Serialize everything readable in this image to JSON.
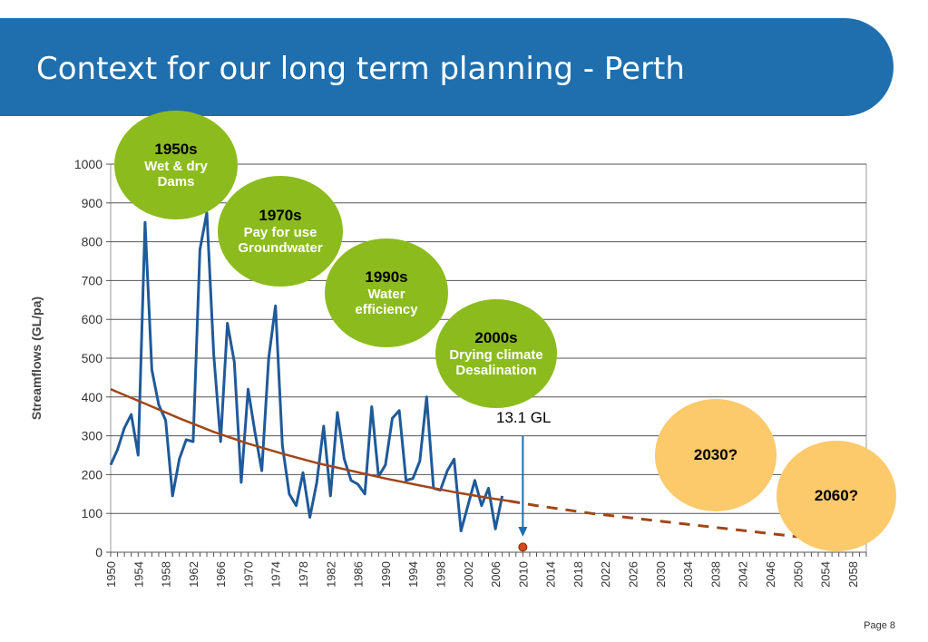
{
  "slide": {
    "title": "Context for our long term planning - Perth",
    "page_label": "Page 8"
  },
  "bubbles": [
    {
      "era": "1950s",
      "line1": "Wet & dry",
      "line2": "Dams"
    },
    {
      "era": "1970s",
      "line1": "Pay for use",
      "line2": "Groundwater"
    },
    {
      "era": "1990s",
      "line1": "Water",
      "line2": "efficiency"
    },
    {
      "era": "2000s",
      "line1": "Drying climate",
      "line2": "Desalination"
    },
    {
      "era": "2030?"
    },
    {
      "era": "2060?"
    }
  ],
  "colors": {
    "banner": "#1f6fae",
    "streamflow": "#1f5a99",
    "trend": "#a0461a",
    "bubble_green": "#8cbb1e",
    "bubble_yellow": "#fcc96b"
  },
  "chart_data": {
    "type": "line",
    "ylabel": "Streamflows (GL/pa)",
    "xlabel": "",
    "ylim": [
      0,
      1000
    ],
    "xlim": [
      1950,
      2060
    ],
    "yticks": [
      0,
      100,
      200,
      300,
      400,
      500,
      600,
      700,
      800,
      900,
      1000
    ],
    "xticks": [
      "1950",
      "1954",
      "1958",
      "1962",
      "1966",
      "1970",
      "1974",
      "1978",
      "1982",
      "1986",
      "1990",
      "1994",
      "1998",
      "2002",
      "2006",
      "2010",
      "2014",
      "2018",
      "2022",
      "2026",
      "2030",
      "2034",
      "2038",
      "2042",
      "2046",
      "2050",
      "2054",
      "2058"
    ],
    "grid": "horizontal",
    "series": [
      {
        "style": "solid",
        "x": [
          1950,
          1951,
          1952,
          1953,
          1954,
          1955,
          1956,
          1957,
          1958,
          1959,
          1960,
          1961,
          1962,
          1963,
          1964,
          1965,
          1966,
          1967,
          1968,
          1969,
          1970,
          1971,
          1972,
          1973,
          1974,
          1975,
          1976,
          1977,
          1978,
          1979,
          1980,
          1981,
          1982,
          1983,
          1984,
          1985,
          1986,
          1987,
          1988,
          1989,
          1990,
          1991,
          1992,
          1993,
          1994,
          1995,
          1996,
          1997,
          1998,
          1999,
          2000,
          2001,
          2002,
          2003,
          2004,
          2005,
          2006,
          2007
        ],
        "y": [
          225,
          265,
          320,
          355,
          250,
          850,
          470,
          380,
          340,
          145,
          240,
          290,
          285,
          780,
          875,
          510,
          285,
          590,
          490,
          180,
          420,
          310,
          210,
          500,
          635,
          275,
          150,
          120,
          205,
          90,
          180,
          325,
          145,
          360,
          240,
          185,
          175,
          150,
          375,
          195,
          225,
          345,
          365,
          185,
          190,
          235,
          400,
          165,
          160,
          210,
          240,
          55,
          120,
          185,
          120,
          165,
          60,
          145
        ]
      },
      {
        "style": "solid",
        "x": [
          1950,
          1955,
          1960,
          1965,
          1970,
          1975,
          1980,
          1985,
          1990,
          1995,
          2000,
          2005,
          2008
        ],
        "y": [
          420,
          383,
          345,
          310,
          280,
          254,
          230,
          210,
          190,
          172,
          155,
          140,
          132
        ]
      },
      {
        "style": "dashed",
        "x": [
          2008,
          2012,
          2020,
          2030,
          2040,
          2050,
          2056
        ],
        "y": [
          132,
          120,
          100,
          80,
          60,
          40,
          28
        ]
      }
    ],
    "annotations": [
      {
        "text": "13.1 GL",
        "x": 2010,
        "y": 13.1
      }
    ]
  }
}
